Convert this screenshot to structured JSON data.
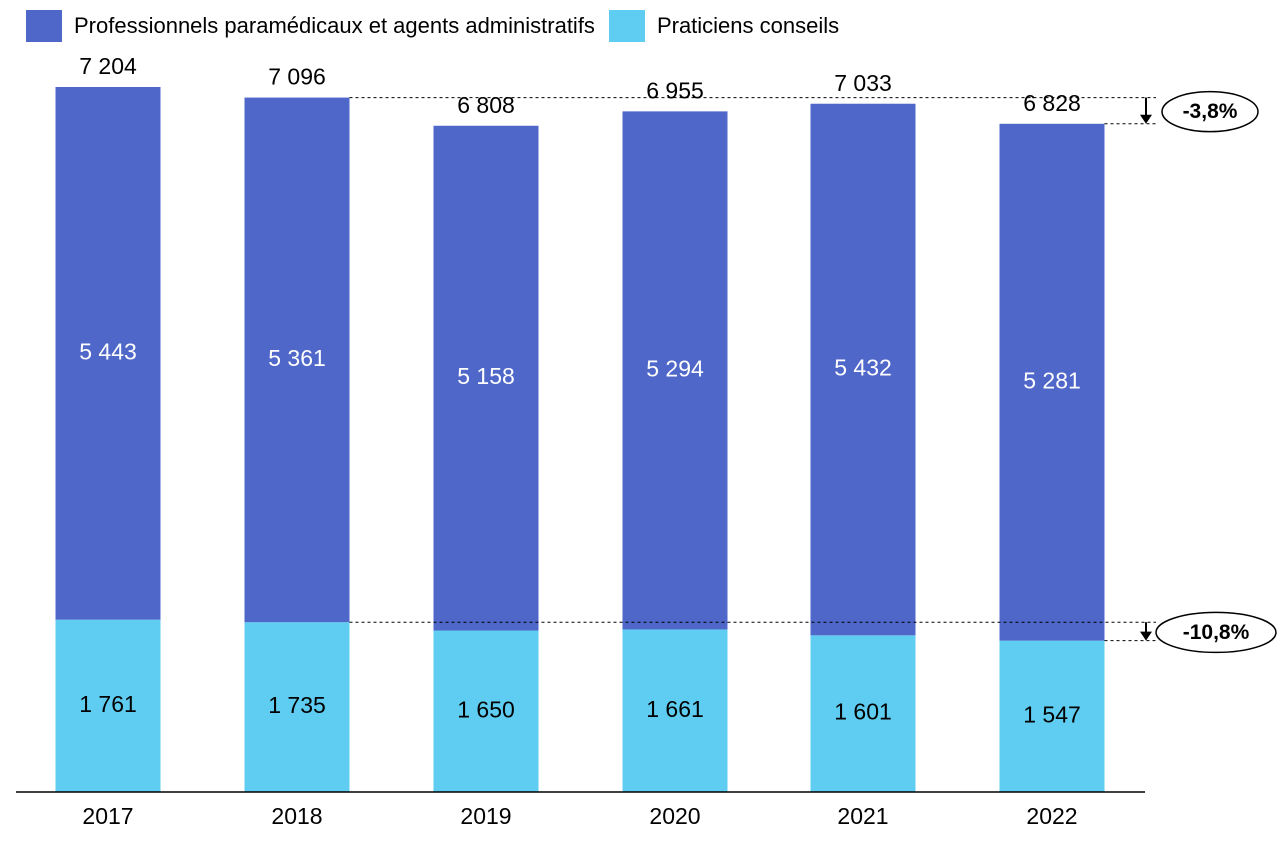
{
  "chart_data": {
    "type": "bar",
    "stacked": true,
    "categories": [
      "2017",
      "2018",
      "2019",
      "2020",
      "2021",
      "2022"
    ],
    "series": [
      {
        "name": "Praticiens conseils",
        "color": "#5fcdf2",
        "values": [
          1761,
          1735,
          1650,
          1661,
          1601,
          1547
        ]
      },
      {
        "name": "Professionnels paramédicaux et agents administratifs",
        "color": "#4f67c8",
        "values": [
          5443,
          5361,
          5158,
          5294,
          5432,
          5281
        ]
      }
    ],
    "totals": [
      7204,
      7096,
      6808,
      6955,
      7033,
      6828
    ],
    "value_labels": {
      "totals": [
        "7 204",
        "7 096",
        "6 808",
        "6 955",
        "7 033",
        "6 828"
      ],
      "praticiens": [
        "1 761",
        "1 735",
        "1 650",
        "1 661",
        "1 601",
        "1 547"
      ],
      "professionnels": [
        "5 443",
        "5 361",
        "5 158",
        "5 294",
        "5 432",
        "5 281"
      ]
    },
    "annotations": [
      {
        "text": "-3,8%",
        "from": "2018 total",
        "to": "2022 total"
      },
      {
        "text": "-10,8%",
        "from": "2018 Praticiens conseils",
        "to": "2022 Praticiens conseils"
      }
    ],
    "ylim": [
      0,
      7204
    ],
    "legend_position": "top-left",
    "grid": false
  },
  "legend": [
    {
      "label": "Professionnels paramédicaux et agents administratifs",
      "color": "#4f67c8"
    },
    {
      "label": "Praticiens conseils",
      "color": "#5fcdf2"
    }
  ]
}
